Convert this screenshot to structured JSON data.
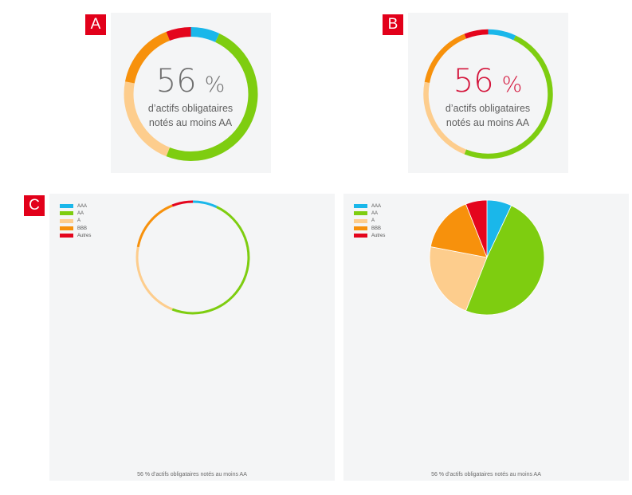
{
  "labels": {
    "a": "A",
    "b": "B",
    "c": "C"
  },
  "chart_data": [
    {
      "type": "donut",
      "id": "A",
      "center_value": "56",
      "center_unit": "%",
      "center_value_color": "#707070",
      "center_text": [
        "d’actifs obligataires",
        "notés au moins AA"
      ],
      "slices": [
        {
          "name": "AAA",
          "value": 7,
          "color": "#1ab7ea"
        },
        {
          "name": "AA",
          "value": 49,
          "color": "#7ecd10"
        },
        {
          "name": "A",
          "value": 22,
          "color": "#fdcd8d"
        },
        {
          "name": "BBB",
          "value": 16,
          "color": "#f7910c"
        },
        {
          "name": "Autres",
          "value": 6,
          "color": "#e4051d"
        }
      ]
    },
    {
      "type": "donut",
      "id": "B",
      "center_value": "56",
      "center_unit": "%",
      "center_value_color": "#d4173d",
      "center_text": [
        "d’actifs obligataires",
        "notés au moins AA"
      ],
      "slices": [
        {
          "name": "AAA",
          "value": 7,
          "color": "#1ab7ea"
        },
        {
          "name": "AA",
          "value": 49,
          "color": "#7ecd10"
        },
        {
          "name": "A",
          "value": 22,
          "color": "#fdcd8d"
        },
        {
          "name": "BBB",
          "value": 16,
          "color": "#f7910c"
        },
        {
          "name": "Autres",
          "value": 6,
          "color": "#e4051d"
        }
      ]
    },
    {
      "type": "donut",
      "id": "C-ring",
      "caption": "56 % d’actifs obligataires notés au moins AA",
      "legend": [
        "AAA",
        "AA",
        "A",
        "BBB",
        "Autres"
      ],
      "slices": [
        {
          "name": "AAA",
          "value": 7,
          "color": "#1ab7ea"
        },
        {
          "name": "AA",
          "value": 49,
          "color": "#7ecd10"
        },
        {
          "name": "A",
          "value": 22,
          "color": "#fdcd8d"
        },
        {
          "name": "BBB",
          "value": 16,
          "color": "#f7910c"
        },
        {
          "name": "Autres",
          "value": 6,
          "color": "#e4051d"
        }
      ]
    },
    {
      "type": "pie",
      "id": "C-pie",
      "caption": "56 % d’actifs obligataires notés au moins AA",
      "legend": [
        "AAA",
        "AA",
        "A",
        "BBB",
        "Autres"
      ],
      "slices": [
        {
          "name": "AAA",
          "value": 7,
          "color": "#1ab7ea"
        },
        {
          "name": "AA",
          "value": 49,
          "color": "#7ecd10"
        },
        {
          "name": "A",
          "value": 22,
          "color": "#fdcd8d"
        },
        {
          "name": "BBB",
          "value": 16,
          "color": "#f7910c"
        },
        {
          "name": "Autres",
          "value": 6,
          "color": "#e4051d"
        }
      ]
    }
  ]
}
